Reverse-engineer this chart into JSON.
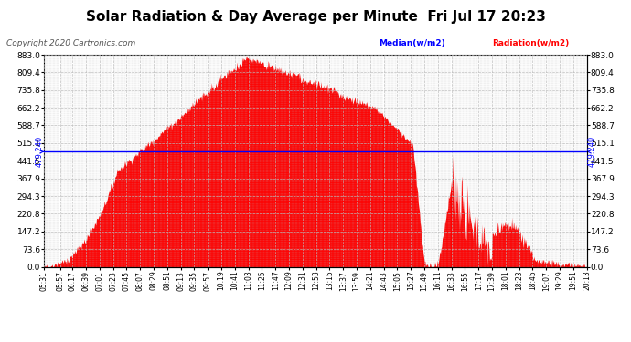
{
  "title": "Solar Radiation & Day Average per Minute  Fri Jul 17 20:23",
  "copyright": "Copyright 2020 Cartronics.com",
  "legend_median": "Median(w/m2)",
  "legend_radiation": "Radiation(w/m2)",
  "ymin": 0.0,
  "ymax": 883.0,
  "yticks": [
    0.0,
    73.6,
    147.2,
    220.8,
    294.3,
    367.9,
    441.5,
    515.1,
    588.7,
    662.2,
    735.8,
    809.4,
    883.0
  ],
  "median_value": 479.24,
  "median_label": "479.240",
  "background_color": "#ffffff",
  "fill_color": "#ff0000",
  "median_line_color": "#0000ff",
  "grid_color": "#bbbbbb",
  "title_color": "#000000",
  "title_fontsize": 11,
  "copyright_color": "#555555",
  "copyright_fontsize": 6.5,
  "x_tick_fontsize": 5.5,
  "y_tick_fontsize": 6.5,
  "time_labels": [
    "05:31",
    "05:57",
    "06:17",
    "06:39",
    "07:01",
    "07:23",
    "07:45",
    "08:07",
    "08:29",
    "08:51",
    "09:13",
    "09:35",
    "09:57",
    "10:19",
    "10:41",
    "11:03",
    "11:25",
    "11:47",
    "12:09",
    "12:31",
    "12:53",
    "13:15",
    "13:37",
    "13:59",
    "14:21",
    "14:43",
    "15:05",
    "15:27",
    "15:49",
    "16:11",
    "16:33",
    "16:55",
    "17:17",
    "17:39",
    "18:01",
    "18:23",
    "18:45",
    "19:07",
    "19:29",
    "19:51",
    "20:13"
  ]
}
